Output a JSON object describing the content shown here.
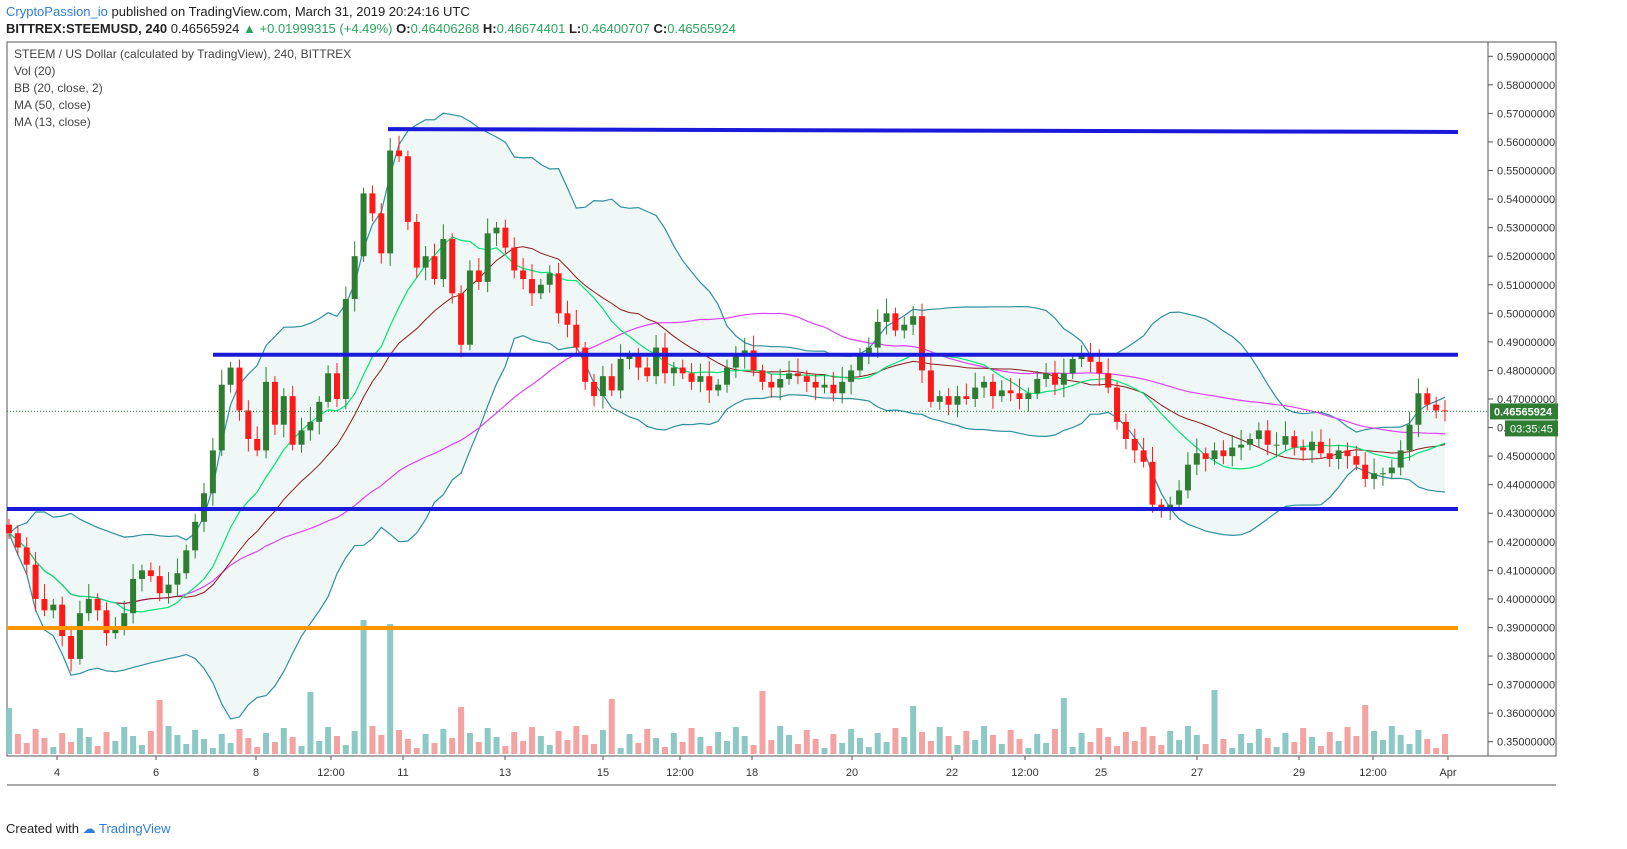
{
  "header": {
    "author": "CryptoPassion_io",
    "published": "published on TradingView.com, March 31, 2019 20:24:16 UTC",
    "symbol": "BITTREX:STEEMUSD, 240",
    "last": "0.46565924",
    "change": "▲ +0.01999315 (+4.49%)",
    "o_label": "O:",
    "o": "0.46406268",
    "h_label": "H:",
    "h": "0.46674401",
    "l_label": "L:",
    "l": "0.46400707",
    "c_label": "C:",
    "c": "0.46565924"
  },
  "legend": {
    "title": "STEEM / US Dollar (calculated by TradingView), 240, BITTREX",
    "vol": "Vol (20)",
    "bb": "BB (20, close, 2)",
    "ma50": "MA (50, close)",
    "ma13": "MA (13, close)"
  },
  "price_label": "0.46565924",
  "countdown_label": "03:35:45",
  "footer": {
    "created": "Created with",
    "brand": "TradingView"
  },
  "colors": {
    "up": "#2e7d32",
    "down": "#ff1a1a",
    "bb": "#2f8f9d",
    "bb_fill": "#e6f4f2",
    "ma13": "#00e676",
    "ma20": "#8b1a1a",
    "ma50": "#e040fb",
    "support": "#1a1adb",
    "orange": "#ff9800",
    "vol_up": "#8cc9c4",
    "vol_down": "#f4a3a3"
  },
  "chart_data": {
    "type": "candlestick",
    "y_ticks": [
      "0.59000000",
      "0.58000000",
      "0.57000000",
      "0.56000000",
      "0.55000000",
      "0.54000000",
      "0.53000000",
      "0.52000000",
      "0.51000000",
      "0.50000000",
      "0.49000000",
      "0.48000000",
      "0.47000000",
      "0.46000000",
      "0.45000000",
      "0.44000000",
      "0.43000000",
      "0.42000000",
      "0.41000000",
      "0.40000000",
      "0.39000000",
      "0.38000000",
      "0.37000000",
      "0.36000000",
      "0.35000000"
    ],
    "x_ticks": [
      "4",
      "6",
      "8",
      "12:00",
      "11",
      "13",
      "15",
      "12:00",
      "18",
      "20",
      "22",
      "12:00",
      "25",
      "27",
      "29",
      "12:00",
      "Apr"
    ],
    "horizontal_lines": [
      {
        "name": "resistance-top",
        "color": "#1a1adb",
        "from": 0.5645,
        "to": 0.5635
      },
      {
        "name": "resistance-mid",
        "color": "#1a1adb",
        "from": 0.4855,
        "to": 0.4855
      },
      {
        "name": "support",
        "color": "#1a1adb",
        "from": 0.4315,
        "to": 0.4315
      },
      {
        "name": "orange-level",
        "color": "#ff9800",
        "from": 0.3898,
        "to": 0.3898
      }
    ],
    "candles_close": [
      0.423,
      0.418,
      0.412,
      0.4,
      0.396,
      0.398,
      0.387,
      0.379,
      0.395,
      0.4,
      0.396,
      0.388,
      0.39,
      0.395,
      0.407,
      0.41,
      0.408,
      0.402,
      0.405,
      0.409,
      0.417,
      0.427,
      0.437,
      0.452,
      0.475,
      0.481,
      0.466,
      0.456,
      0.452,
      0.476,
      0.461,
      0.471,
      0.454,
      0.459,
      0.462,
      0.469,
      0.479,
      0.47,
      0.505,
      0.52,
      0.542,
      0.535,
      0.521,
      0.557,
      0.555,
      0.532,
      0.516,
      0.52,
      0.512,
      0.526,
      0.507,
      0.489,
      0.515,
      0.511,
      0.528,
      0.53,
      0.523,
      0.515,
      0.512,
      0.507,
      0.51,
      0.514,
      0.5,
      0.496,
      0.488,
      0.476,
      0.471,
      0.478,
      0.473,
      0.484,
      0.485,
      0.481,
      0.478,
      0.488,
      0.479,
      0.481,
      0.479,
      0.476,
      0.478,
      0.473,
      0.475,
      0.481,
      0.485,
      0.487,
      0.48,
      0.476,
      0.474,
      0.477,
      0.479,
      0.478,
      0.476,
      0.474,
      0.475,
      0.472,
      0.476,
      0.48,
      0.485,
      0.488,
      0.497,
      0.5,
      0.494,
      0.496,
      0.499,
      0.48,
      0.469,
      0.471,
      0.468,
      0.471,
      0.47,
      0.474,
      0.476,
      0.471,
      0.473,
      0.472,
      0.47,
      0.472,
      0.477,
      0.479,
      0.475,
      0.479,
      0.484,
      0.486,
      0.483,
      0.479,
      0.474,
      0.462,
      0.456,
      0.452,
      0.448,
      0.433,
      0.432,
      0.433,
      0.438,
      0.447,
      0.451,
      0.449,
      0.452,
      0.45,
      0.453,
      0.454,
      0.456,
      0.459,
      0.454,
      0.454,
      0.457,
      0.453,
      0.452,
      0.455,
      0.451,
      0.449,
      0.452,
      0.45,
      0.447,
      0.442,
      0.444,
      0.444,
      0.446,
      0.452,
      0.461,
      0.472,
      0.468,
      0.466,
      0.4657
    ]
  }
}
